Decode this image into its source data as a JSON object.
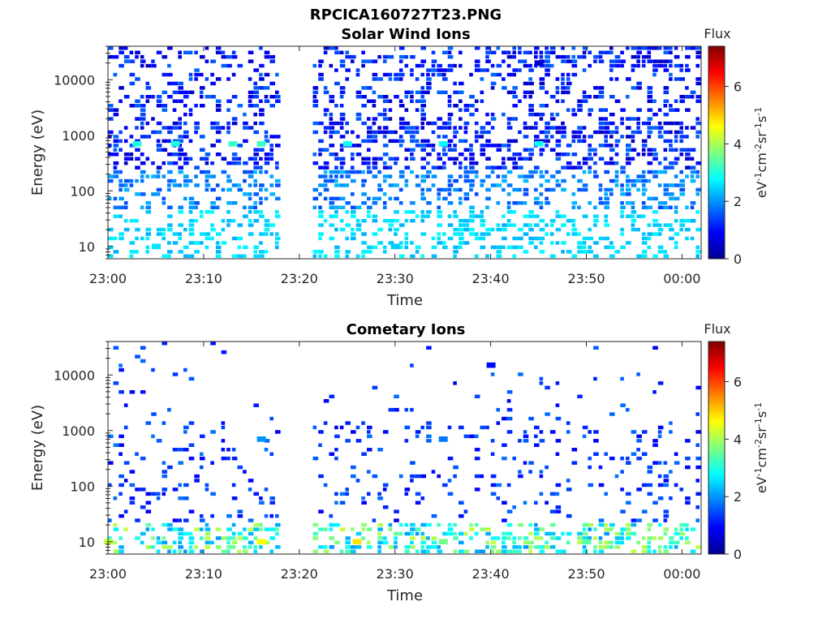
{
  "figure_title": "RPCICA160727T23.PNG",
  "chart_data": [
    {
      "type": "heatmap",
      "title": "Solar Wind Ions",
      "xlabel": "Time",
      "ylabel": "Energy (eV)",
      "x_ticks": [
        "23:00",
        "23:10",
        "23:20",
        "23:30",
        "23:40",
        "23:50",
        "00:00"
      ],
      "x_range": [
        "23:00",
        "00:02"
      ],
      "y_scale": "log",
      "y_ticks": [
        "10",
        "100",
        "1000",
        "10000"
      ],
      "y_range": [
        6,
        40000
      ],
      "colorbar": {
        "title": "Flux",
        "label": "eV-1cm-2sr-1s-1",
        "ticks": [
          "0",
          "2",
          "4",
          "6"
        ],
        "range": [
          0,
          7.4
        ],
        "colormap": "jet"
      },
      "data_gap": [
        "23:18",
        "23:21"
      ],
      "notes_values": [
        {
          "time": "23:03",
          "energy_eV": 700,
          "flux": 3.0
        },
        {
          "time": "23:07",
          "energy_eV": 700,
          "flux": 3.0
        },
        {
          "time": "23:13",
          "energy_eV": 700,
          "flux": 3.2
        },
        {
          "time": "23:16",
          "energy_eV": 700,
          "flux": 3.2
        },
        {
          "time": "23:25",
          "energy_eV": 700,
          "flux": 2.9
        },
        {
          "time": "23:35",
          "energy_eV": 700,
          "flux": 2.8
        },
        {
          "time": "23:45",
          "energy_eV": 700,
          "flux": 2.8
        },
        {
          "time": "23:05",
          "energy_eV": 10,
          "flux": 2.6
        },
        {
          "time": "23:30",
          "energy_eV": 10,
          "flux": 2.4
        },
        {
          "time": "23:45",
          "energy_eV": 20000,
          "flux": 0.6
        }
      ]
    },
    {
      "type": "heatmap",
      "title": "Cometary Ions",
      "xlabel": "Time",
      "ylabel": "Energy (eV)",
      "x_ticks": [
        "23:00",
        "23:10",
        "23:20",
        "23:30",
        "23:40",
        "23:50",
        "00:00"
      ],
      "x_range": [
        "23:00",
        "00:02"
      ],
      "y_scale": "log",
      "y_ticks": [
        "10",
        "100",
        "1000",
        "10000"
      ],
      "y_range": [
        6,
        40000
      ],
      "colorbar": {
        "title": "Flux",
        "label": "eV-1cm-2sr-1s-1",
        "ticks": [
          "0",
          "2",
          "4",
          "6"
        ],
        "range": [
          0,
          7.4
        ],
        "colormap": "jet"
      },
      "data_gap": [
        "23:18",
        "23:21"
      ],
      "notes_values": [
        {
          "time": "23:00",
          "energy_eV": 10,
          "flux": 4.2
        },
        {
          "time": "23:16",
          "energy_eV": 10,
          "flux": 4.6
        },
        {
          "time": "23:26",
          "energy_eV": 10,
          "flux": 4.8
        },
        {
          "time": "23:35",
          "energy_eV": 10,
          "flux": 3.6
        },
        {
          "time": "23:50",
          "energy_eV": 10,
          "flux": 3.4
        },
        {
          "time": "23:16",
          "energy_eV": 700,
          "flux": 2.0
        },
        {
          "time": "23:35",
          "energy_eV": 700,
          "flux": 1.8
        },
        {
          "time": "23:40",
          "energy_eV": 15000,
          "flux": 1.0
        }
      ]
    }
  ]
}
